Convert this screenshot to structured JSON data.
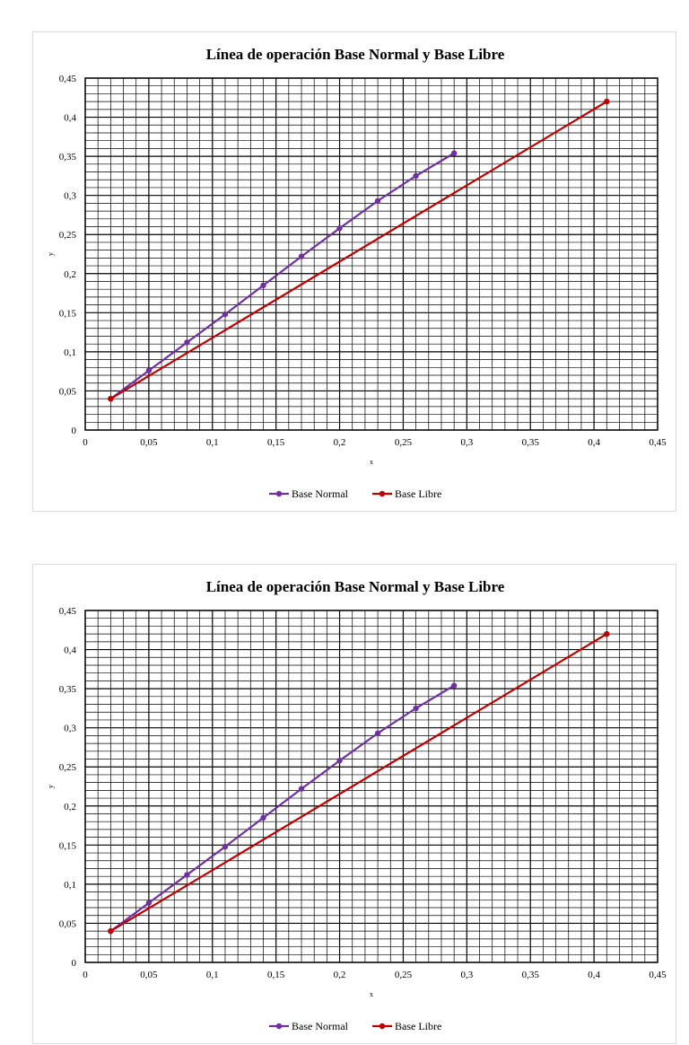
{
  "chart_data": [
    {
      "type": "line",
      "title": "Línea de operación Base Normal y Base Libre",
      "xlabel": "x",
      "ylabel": "y",
      "xlim": [
        0,
        0.45
      ],
      "ylim": [
        0,
        0.45
      ],
      "x_ticks": [
        "0",
        "0,05",
        "0,1",
        "0,15",
        "0,2",
        "0,25",
        "0,3",
        "0,35",
        "0,4",
        "0,45"
      ],
      "y_ticks": [
        "0",
        "0,05",
        "0,1",
        "0,15",
        "0,2",
        "0,25",
        "0,3",
        "0,35",
        "0,4",
        "0,45"
      ],
      "grid": true,
      "legend_position": "bottom",
      "series": [
        {
          "name": "Base Normal",
          "color": "#7030a0",
          "points": [
            [
              0.02,
              0.04
            ],
            [
              0.05,
              0.076
            ],
            [
              0.08,
              0.112
            ],
            [
              0.11,
              0.148
            ],
            [
              0.14,
              0.185
            ],
            [
              0.17,
              0.222
            ],
            [
              0.2,
              0.258
            ],
            [
              0.23,
              0.293
            ],
            [
              0.26,
              0.325
            ],
            [
              0.29,
              0.354
            ]
          ]
        },
        {
          "name": "Base Libre",
          "color": "#c00000",
          "points": [
            [
              0.02,
              0.04
            ],
            [
              0.41,
              0.42
            ]
          ]
        }
      ]
    },
    {
      "type": "line",
      "title": "Línea de operación Base Normal y Base Libre",
      "xlabel": "x",
      "ylabel": "y",
      "xlim": [
        0,
        0.45
      ],
      "ylim": [
        0,
        0.45
      ],
      "x_ticks": [
        "0",
        "0,05",
        "0,1",
        "0,15",
        "0,2",
        "0,25",
        "0,3",
        "0,35",
        "0,4",
        "0,45"
      ],
      "y_ticks": [
        "0",
        "0,05",
        "0,1",
        "0,15",
        "0,2",
        "0,25",
        "0,3",
        "0,35",
        "0,4",
        "0,45"
      ],
      "grid": true,
      "legend_position": "bottom",
      "series": [
        {
          "name": "Base Normal",
          "color": "#7030a0",
          "points": [
            [
              0.02,
              0.04
            ],
            [
              0.05,
              0.076
            ],
            [
              0.08,
              0.112
            ],
            [
              0.11,
              0.148
            ],
            [
              0.14,
              0.185
            ],
            [
              0.17,
              0.222
            ],
            [
              0.2,
              0.258
            ],
            [
              0.23,
              0.293
            ],
            [
              0.26,
              0.325
            ],
            [
              0.29,
              0.354
            ]
          ]
        },
        {
          "name": "Base Libre",
          "color": "#c00000",
          "points": [
            [
              0.02,
              0.04
            ],
            [
              0.41,
              0.42
            ]
          ]
        }
      ]
    }
  ]
}
